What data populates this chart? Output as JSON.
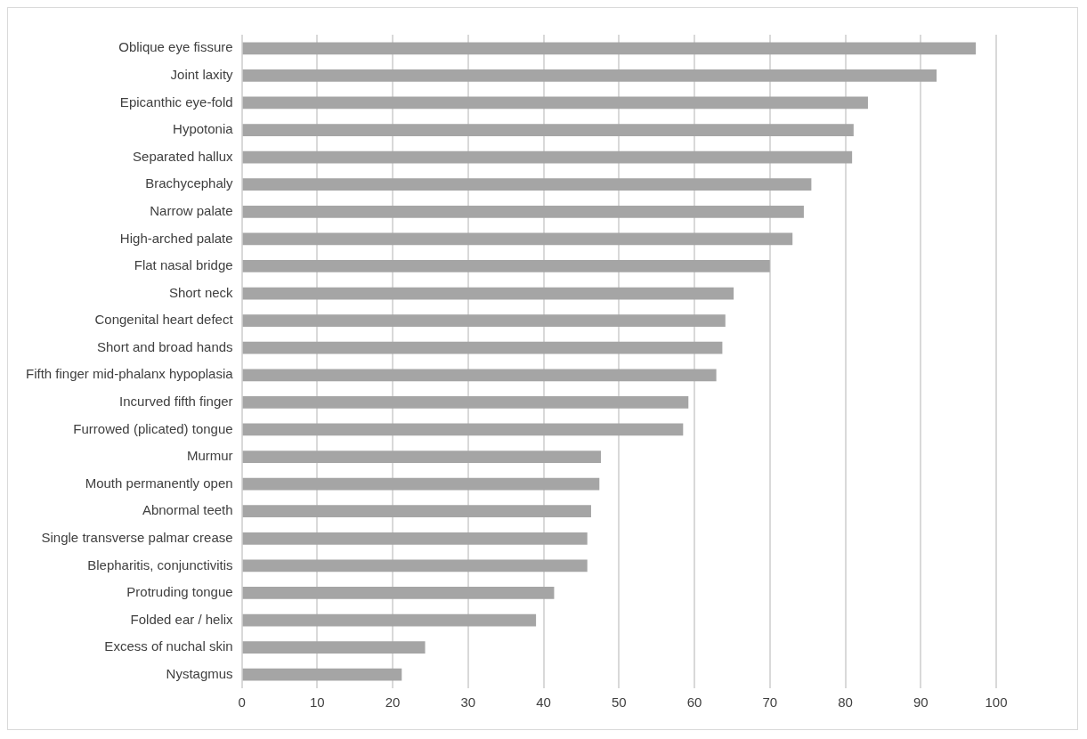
{
  "chart_data": {
    "type": "bar",
    "orientation": "horizontal",
    "categories": [
      "Oblique eye fissure",
      "Joint laxity",
      "Epicanthic eye-fold",
      "Hypotonia",
      "Separated hallux",
      "Brachycephaly",
      "Narrow palate",
      "High-arched palate",
      "Flat nasal bridge",
      "Short neck",
      "Congenital heart defect",
      "Short and broad hands",
      "Fifth finger mid-phalanx hypoplasia",
      "Incurved fifth finger",
      "Furrowed (plicated) tongue",
      "Murmur",
      "Mouth permanently open",
      "Abnormal teeth",
      "Single transverse palmar crease",
      "Blepharitis, conjunctivitis",
      "Protruding tongue",
      "Folded ear / helix",
      "Excess of nuchal skin",
      "Nystagmus"
    ],
    "values": [
      97.3,
      92.1,
      83.0,
      81.1,
      80.9,
      75.5,
      74.5,
      73.0,
      70.0,
      65.2,
      64.1,
      63.7,
      62.9,
      59.2,
      58.5,
      47.6,
      47.4,
      46.3,
      45.8,
      45.8,
      41.4,
      39.0,
      24.3,
      21.2
    ],
    "color": "#a5a5a5",
    "xlim": [
      0,
      100
    ],
    "xticks": [
      0,
      10,
      20,
      30,
      40,
      50,
      60,
      70,
      80,
      90,
      100
    ],
    "grid": "x",
    "legend": false
  }
}
